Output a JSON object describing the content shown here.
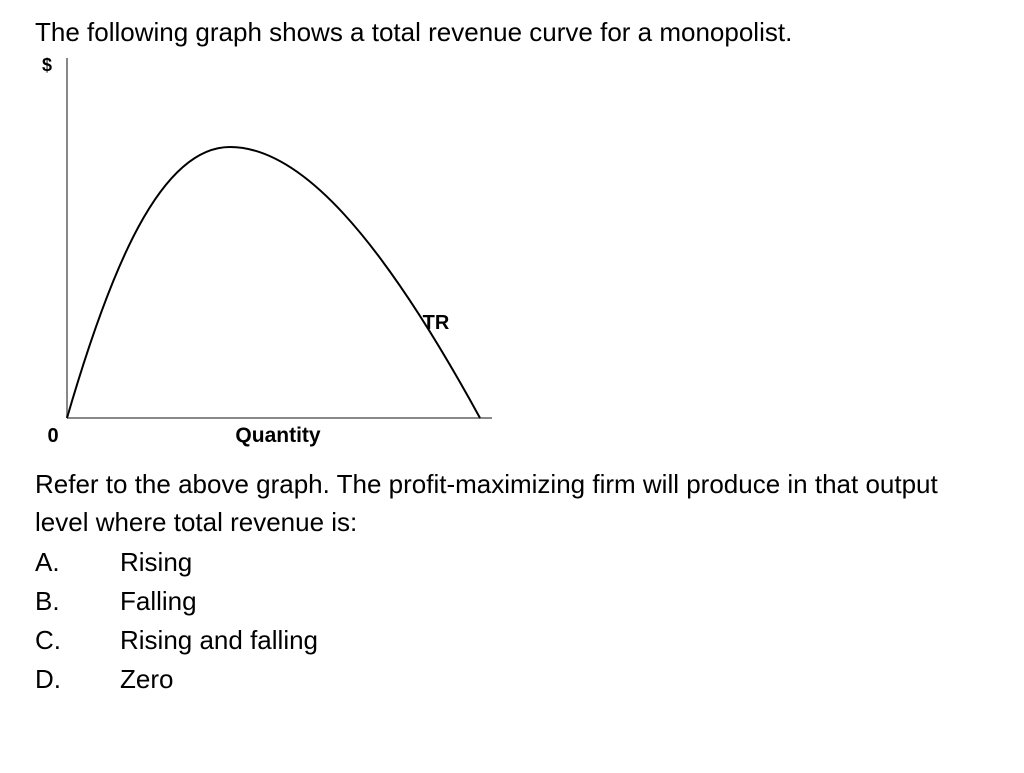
{
  "intro": "The following graph shows a total revenue curve for a monopolist.",
  "graph": {
    "y_label": "$",
    "origin": "0",
    "x_label": "Quantity",
    "curve_label": "TR"
  },
  "question": "Refer to the above graph. The profit-maximizing firm will produce in that output level where total revenue is:",
  "options": [
    {
      "letter": "A.",
      "text": "Rising"
    },
    {
      "letter": "B.",
      "text": "Falling"
    },
    {
      "letter": "C.",
      "text": "Rising and falling"
    },
    {
      "letter": "D.",
      "text": "Zero"
    }
  ]
}
